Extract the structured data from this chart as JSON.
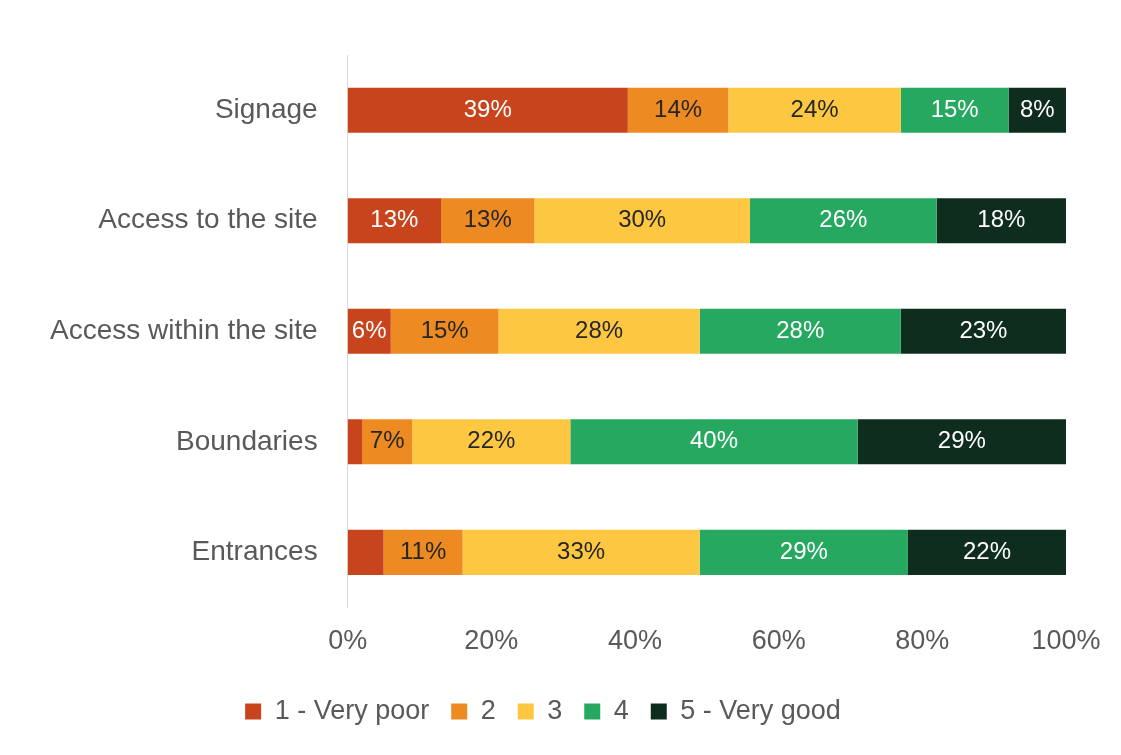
{
  "chart_data": {
    "type": "bar",
    "orientation": "horizontal",
    "stacked": true,
    "categories": [
      "Signage",
      "Access to the site",
      "Access within the site",
      "Boundaries",
      "Entrances"
    ],
    "series": [
      {
        "name": "1 - Very poor",
        "color": "#c8441d",
        "values": [
          39,
          13,
          6,
          2,
          5
        ],
        "value_labels": [
          "39%",
          "13%",
          "6%",
          null,
          null
        ]
      },
      {
        "name": "2",
        "color": "#ee8a22",
        "values": [
          14,
          13,
          15,
          7,
          11
        ],
        "value_labels": [
          "14%",
          "13%",
          "15%",
          "7%",
          "11%"
        ]
      },
      {
        "name": "3",
        "color": "#fdc742",
        "values": [
          24,
          30,
          28,
          22,
          33
        ],
        "value_labels": [
          "24%",
          "30%",
          "28%",
          "22%",
          "33%"
        ]
      },
      {
        "name": "4",
        "color": "#27a860",
        "values": [
          15,
          26,
          28,
          40,
          29
        ],
        "value_labels": [
          "15%",
          "26%",
          "28%",
          "40%",
          "29%"
        ]
      },
      {
        "name": "5 - Very good",
        "color": "#0f2d1e",
        "values": [
          8,
          18,
          23,
          29,
          22
        ],
        "value_labels": [
          "8%",
          "18%",
          "23%",
          "29%",
          "22%"
        ]
      }
    ],
    "xlim": [
      0,
      100
    ],
    "xticks": [
      {
        "value": 0,
        "label": "0%"
      },
      {
        "value": 20,
        "label": "20%"
      },
      {
        "value": 40,
        "label": "40%"
      },
      {
        "value": 60,
        "label": "60%"
      },
      {
        "value": 80,
        "label": "80%"
      },
      {
        "value": 100,
        "label": "100%"
      }
    ],
    "grid": false,
    "legend": "bottom"
  }
}
